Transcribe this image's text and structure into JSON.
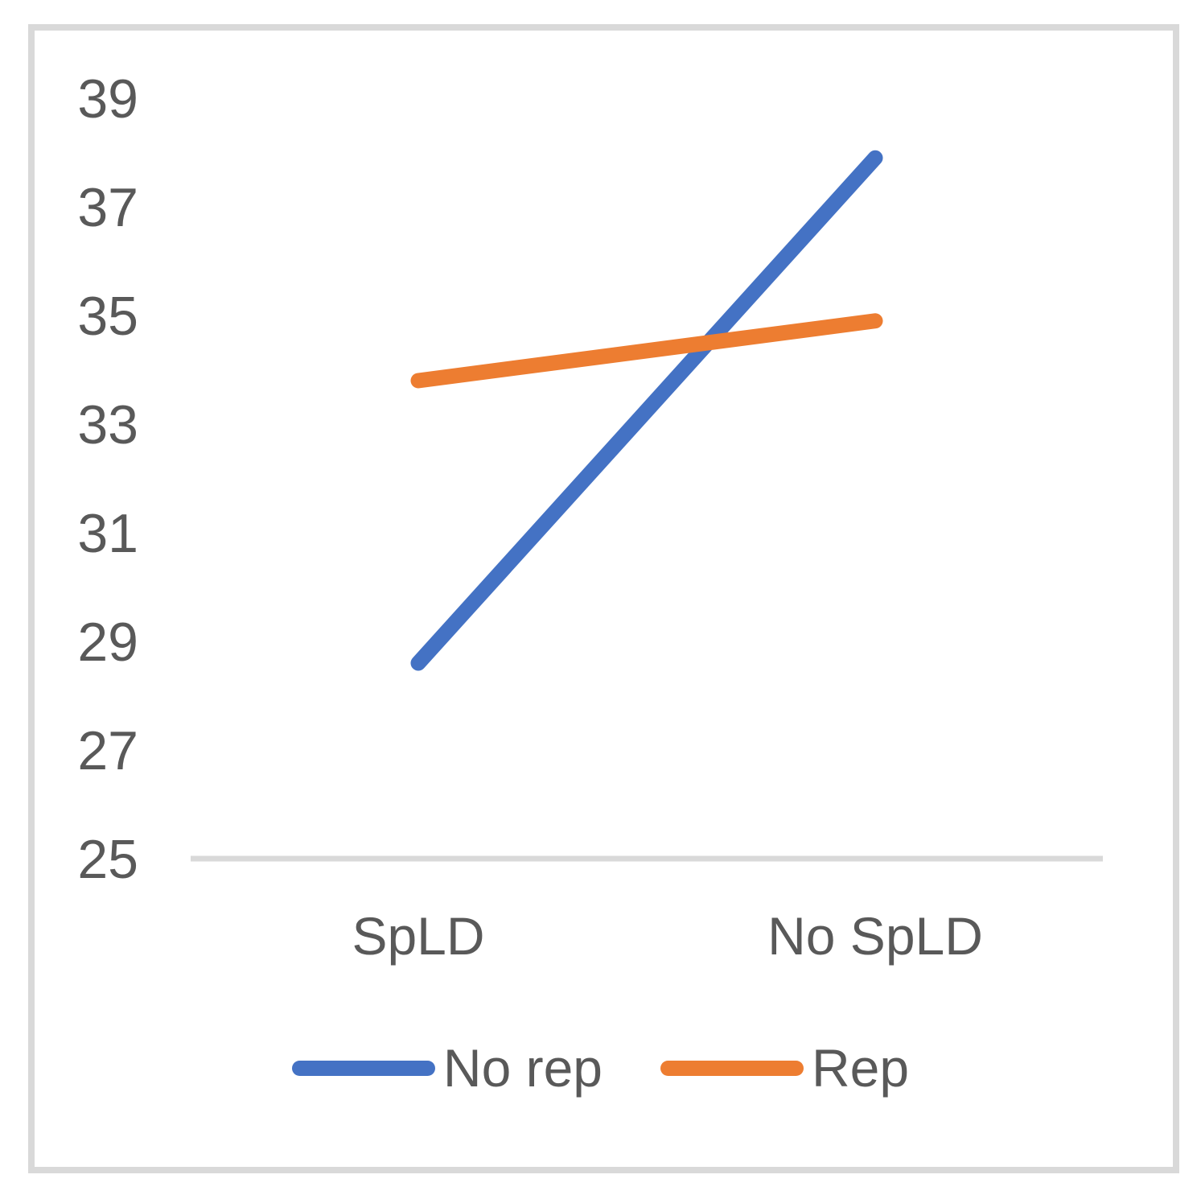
{
  "figure": {
    "background": "#ffffff",
    "frame_color": "#D9D9D9"
  },
  "chart_data": {
    "type": "line",
    "title": "",
    "xlabel": "",
    "ylabel": "",
    "categories": [
      "SpLD",
      "No SpLD"
    ],
    "series": [
      {
        "name": "No rep",
        "color": "#4472C4",
        "values": [
          28.6,
          37.9
        ]
      },
      {
        "name": "Rep",
        "color": "#ED7D31",
        "values": [
          33.8,
          34.9
        ]
      }
    ],
    "yticks": [
      "25",
      "27",
      "29",
      "31",
      "33",
      "35",
      "37",
      "39"
    ],
    "ylim": [
      25,
      39
    ],
    "grid": false,
    "legend_position": "bottom",
    "axis_color": "#D9D9D9",
    "text_color": "#595959"
  }
}
